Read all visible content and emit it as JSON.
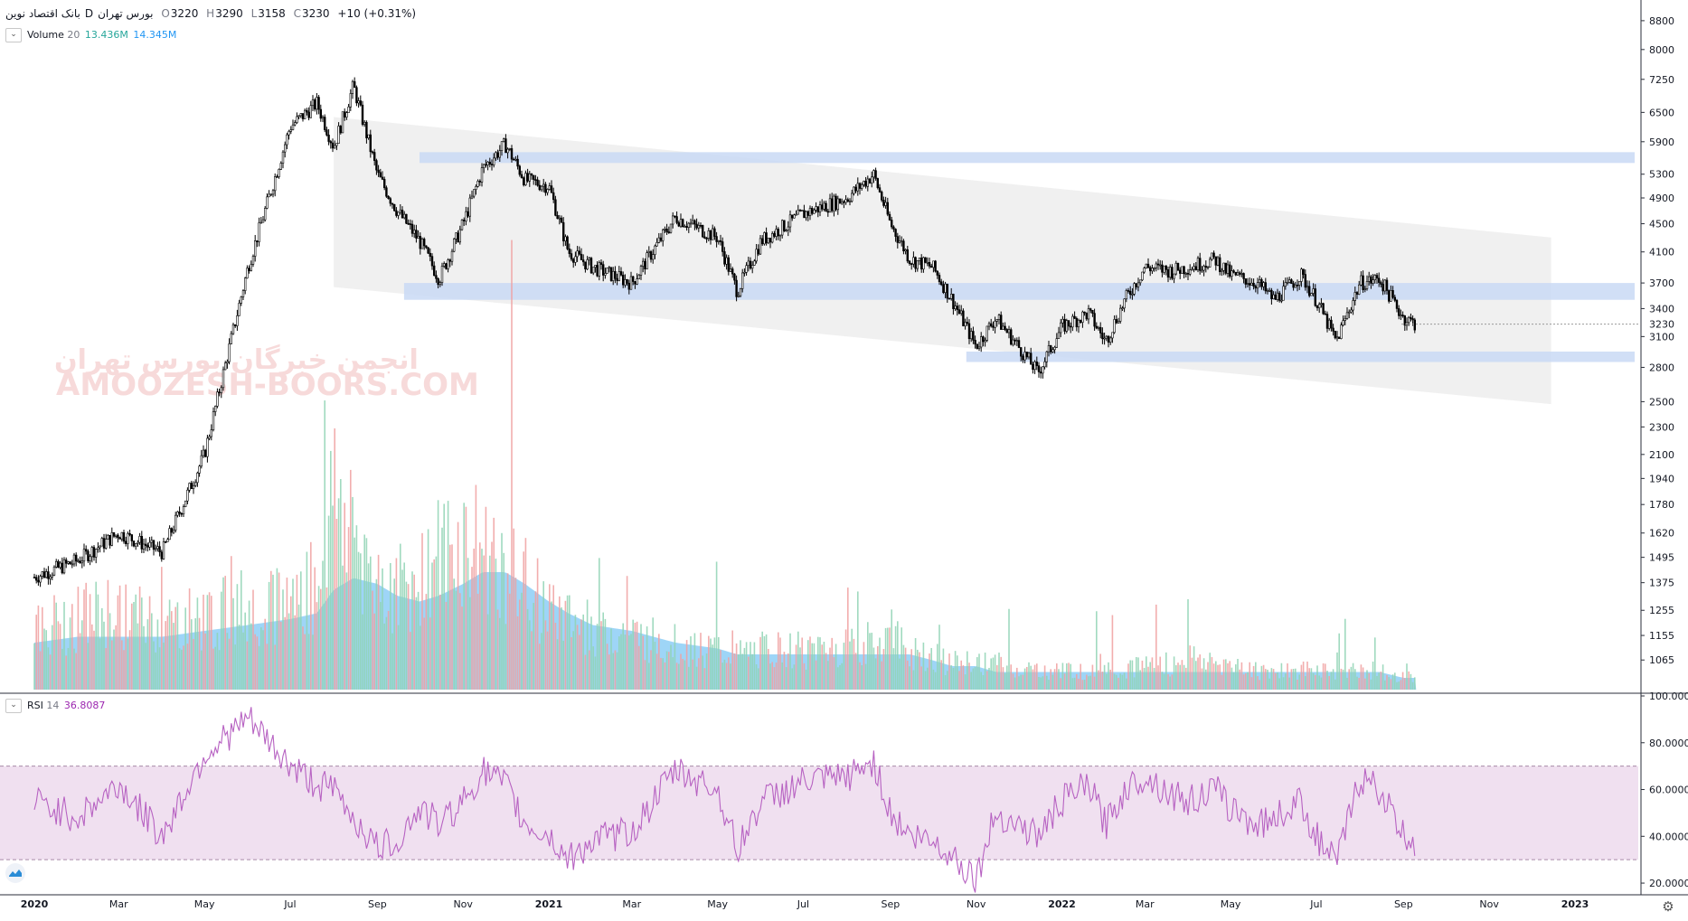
{
  "header": {
    "symbol": "بانک اقتصاد نوین",
    "interval": "D",
    "exchange": "بورس تهران",
    "open_label": "O",
    "open": "3220",
    "high_label": "H",
    "high": "3290",
    "low_label": "L",
    "low": "3158",
    "close_label": "C",
    "close": "3230",
    "change": "+10 (+0.31%)"
  },
  "volume_legend": {
    "name": "Volume",
    "length": "20",
    "value1": "13.436M",
    "value2": "14.345M"
  },
  "rsi_legend": {
    "name": "RSI",
    "length": "14",
    "value": "36.8087"
  },
  "watermark": {
    "line1": "انجمن خبرگان بورس تهران",
    "line2": "AMOOZESH-BOORS.COM"
  },
  "price_axis": {
    "ticks": [
      "8800",
      "8000",
      "7250",
      "6500",
      "5900",
      "5300",
      "4900",
      "4500",
      "4100",
      "3700",
      "3400",
      "3100",
      "2800",
      "2500",
      "2300",
      "2100",
      "1940",
      "1780",
      "1620",
      "1495",
      "1375",
      "1255",
      "1155",
      "1065"
    ],
    "last_price": "3230"
  },
  "rsi_axis": {
    "ticks": [
      "100.0000",
      "80.0000",
      "60.0000",
      "40.0000",
      "20.0000"
    ]
  },
  "time_axis": {
    "labels": [
      "2020",
      "Mar",
      "May",
      "Jul",
      "Sep",
      "Nov",
      "2021",
      "Mar",
      "May",
      "Jul",
      "Sep",
      "Nov",
      "2022",
      "Mar",
      "May",
      "Jul",
      "Sep",
      "Nov",
      "2023"
    ]
  },
  "colors": {
    "candle": "#000000",
    "volume_up": "#8fd3b4",
    "volume_down": "#f0a0a0",
    "volume_ma": "#4fb3f0",
    "support_zone": "#c9d9f4",
    "channel": "#ececec",
    "rsi_line": "#b762c2",
    "rsi_band": "#f0e0f0",
    "volume_value1": "#26a69a",
    "volume_value2": "#2196f3",
    "rsi_value": "#9c27b0"
  },
  "chart_data": [
    {
      "type": "candlestick",
      "title": "بانک اقتصاد نوین · D · بورس تهران",
      "xlabel": "",
      "ylabel": "",
      "y_scale": "log",
      "ylim": [
        960,
        9200
      ],
      "x": [
        "2020-01-01",
        "2020-02-01",
        "2020-03-01",
        "2020-04-01",
        "2020-05-01",
        "2020-06-01",
        "2020-07-01",
        "2020-07-20",
        "2020-08-01",
        "2020-08-15",
        "2020-09-01",
        "2020-09-15",
        "2020-10-01",
        "2020-10-15",
        "2020-11-01",
        "2020-11-15",
        "2020-12-01",
        "2020-12-15",
        "2021-01-01",
        "2021-01-15",
        "2021-02-01",
        "2021-03-01",
        "2021-04-01",
        "2021-05-01",
        "2021-05-15",
        "2021-06-01",
        "2021-07-01",
        "2021-08-01",
        "2021-08-20",
        "2021-09-01",
        "2021-09-15",
        "2021-10-01",
        "2021-10-15",
        "2021-11-01",
        "2021-11-15",
        "2021-12-01",
        "2021-12-15",
        "2022-01-01",
        "2022-01-20",
        "2022-02-01",
        "2022-02-15",
        "2022-03-01",
        "2022-03-20",
        "2022-04-01",
        "2022-04-20",
        "2022-05-01",
        "2022-05-20",
        "2022-06-01",
        "2022-06-20",
        "2022-07-01",
        "2022-07-15",
        "2022-08-01",
        "2022-08-15",
        "2022-09-01",
        "2022-09-10"
      ],
      "close": [
        1400,
        1480,
        1620,
        1520,
        2100,
        3900,
        6200,
        6700,
        5800,
        7100,
        5300,
        4700,
        4250,
        3750,
        4500,
        5400,
        5850,
        5200,
        5100,
        4100,
        3900,
        3700,
        4600,
        4300,
        3600,
        4250,
        4650,
        4900,
        5300,
        4500,
        4000,
        3900,
        3500,
        3000,
        3300,
        3000,
        2750,
        3200,
        3350,
        3050,
        3500,
        3900,
        3850,
        3900,
        4000,
        3800,
        3700,
        3500,
        3800,
        3500,
        3050,
        3700,
        3750,
        3300,
        3230
      ],
      "annotations": {
        "support_zones": [
          [
            5500,
            5700
          ],
          [
            3500,
            3700
          ],
          [
            2850,
            2950
          ]
        ],
        "channel": {
          "start": "2020-08-01",
          "end": "2022-12-15",
          "upper": [
            6400,
            4300
          ],
          "lower": [
            3650,
            2480
          ]
        }
      }
    },
    {
      "type": "bar",
      "title": "Volume 20",
      "series": [
        {
          "name": "Volume",
          "values": [
            9,
            11,
            12,
            10,
            11,
            13,
            14,
            16,
            30,
            25,
            17,
            15,
            18,
            20,
            22,
            21,
            19,
            16,
            12,
            10,
            9,
            8,
            7,
            6,
            5,
            6,
            6,
            7,
            7,
            8,
            6,
            5,
            4,
            4,
            4,
            3,
            3,
            3,
            3,
            4,
            3,
            4,
            4,
            5,
            4,
            4,
            3,
            3,
            3,
            3,
            3,
            3,
            3,
            2,
            2
          ]
        },
        {
          "name": "MA 20",
          "values": [
            8,
            9,
            9,
            9,
            10,
            11,
            12,
            13,
            17,
            19,
            18,
            16,
            15,
            16,
            18,
            20,
            20,
            18,
            15,
            13,
            11,
            10,
            8,
            7,
            6,
            6,
            6,
            6,
            6,
            6,
            6,
            5,
            4,
            4,
            3,
            3,
            3,
            3,
            3,
            3,
            3,
            3,
            3,
            3,
            3,
            3,
            3,
            3,
            3,
            3,
            3,
            3,
            3,
            2,
            2
          ]
        }
      ],
      "legend_values": [
        "13.436M",
        "14.345M"
      ]
    },
    {
      "type": "line",
      "title": "RSI 14",
      "ylim": [
        15,
        100
      ],
      "bands": [
        30,
        70
      ],
      "series": [
        {
          "name": "RSI",
          "values": [
            55,
            48,
            62,
            40,
            75,
            90,
            70,
            62,
            60,
            48,
            35,
            38,
            52,
            45,
            55,
            68,
            62,
            45,
            40,
            30,
            38,
            42,
            68,
            60,
            34,
            55,
            63,
            65,
            72,
            50,
            40,
            38,
            32,
            22,
            50,
            45,
            40,
            55,
            62,
            45,
            60,
            66,
            58,
            55,
            60,
            52,
            45,
            48,
            55,
            40,
            28,
            65,
            60,
            40,
            37
          ]
        }
      ],
      "legend_value": "36.8087"
    }
  ]
}
